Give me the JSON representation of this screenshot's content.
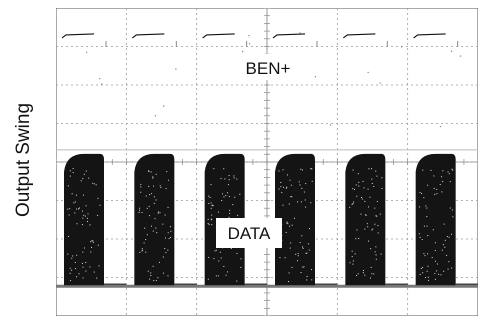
{
  "chart_data": {
    "type": "oscilloscope",
    "ylabel": "Output Swing",
    "xlabel": "",
    "grid": true,
    "grid_divisions": {
      "x": 6,
      "y": 8
    },
    "traces": [
      {
        "name": "BEN+",
        "kind": "pulse-edges",
        "pulses": 6,
        "level_div": 0.7
      },
      {
        "name": "DATA",
        "kind": "eye-bursts",
        "bursts": 6,
        "high_div": 4.1,
        "low_div": 7.2
      }
    ],
    "colors": {
      "trace": "#111111",
      "grid": "#9a9a9a",
      "baseline": "#777777",
      "background": "#ffffff"
    }
  }
}
